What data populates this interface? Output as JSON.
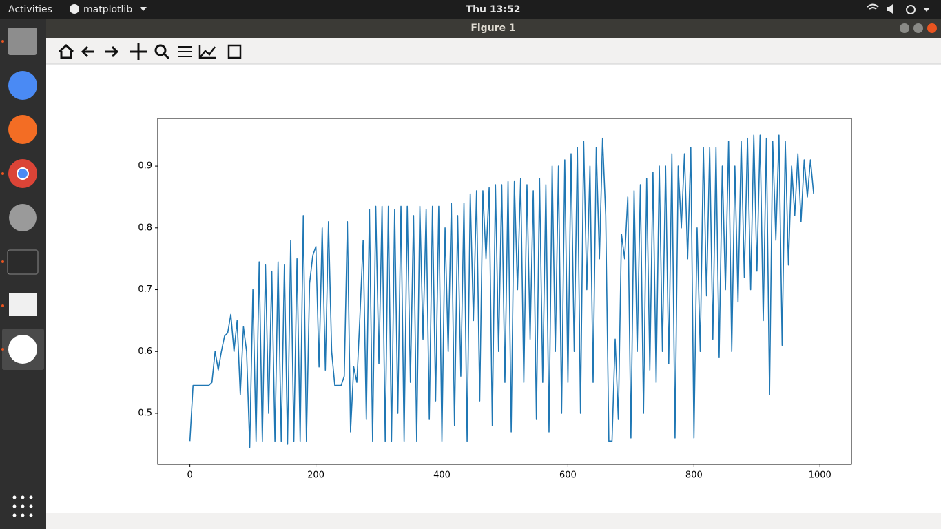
{
  "topbar": {
    "activities": "Activities",
    "app": "matplotlib",
    "clock": "Thu 13:52"
  },
  "window": {
    "title": "Figure 1"
  },
  "chart_data": {
    "type": "line",
    "color": "#1f77b4",
    "xlim": [
      -51,
      1050
    ],
    "ylim": [
      0.4175,
      0.977
    ],
    "xticks": [
      0,
      200,
      400,
      600,
      800,
      1000
    ],
    "yticks": [
      0.5,
      0.6,
      0.7,
      0.8,
      0.9
    ],
    "x": [
      0,
      5,
      10,
      15,
      20,
      25,
      30,
      35,
      40,
      45,
      50,
      55,
      60,
      65,
      70,
      75,
      80,
      85,
      90,
      95,
      100,
      105,
      110,
      115,
      120,
      125,
      130,
      135,
      140,
      145,
      150,
      155,
      160,
      165,
      170,
      175,
      180,
      185,
      190,
      195,
      200,
      205,
      210,
      215,
      220,
      225,
      230,
      235,
      240,
      245,
      250,
      255,
      260,
      265,
      270,
      275,
      280,
      285,
      290,
      295,
      300,
      305,
      310,
      315,
      320,
      325,
      330,
      335,
      340,
      345,
      350,
      355,
      360,
      365,
      370,
      375,
      380,
      385,
      390,
      395,
      400,
      405,
      410,
      415,
      420,
      425,
      430,
      435,
      440,
      445,
      450,
      455,
      460,
      465,
      470,
      475,
      480,
      485,
      490,
      495,
      500,
      505,
      510,
      515,
      520,
      525,
      530,
      535,
      540,
      545,
      550,
      555,
      560,
      565,
      570,
      575,
      580,
      585,
      590,
      595,
      600,
      605,
      610,
      615,
      620,
      625,
      630,
      635,
      640,
      645,
      650,
      655,
      660,
      665,
      670,
      675,
      680,
      685,
      690,
      695,
      700,
      705,
      710,
      715,
      720,
      725,
      730,
      735,
      740,
      745,
      750,
      755,
      760,
      765,
      770,
      775,
      780,
      785,
      790,
      795,
      800,
      805,
      810,
      815,
      820,
      825,
      830,
      835,
      840,
      845,
      850,
      855,
      860,
      865,
      870,
      875,
      880,
      885,
      890,
      895,
      900,
      905,
      910,
      915,
      920,
      925,
      930,
      935,
      940,
      945,
      950,
      955,
      960,
      965,
      970,
      975,
      980,
      985,
      990
    ],
    "values": [
      0.455,
      0.545,
      0.545,
      0.545,
      0.545,
      0.545,
      0.545,
      0.55,
      0.6,
      0.57,
      0.6,
      0.625,
      0.63,
      0.66,
      0.6,
      0.65,
      0.53,
      0.64,
      0.6,
      0.445,
      0.7,
      0.455,
      0.745,
      0.455,
      0.74,
      0.5,
      0.73,
      0.455,
      0.745,
      0.455,
      0.74,
      0.45,
      0.78,
      0.455,
      0.75,
      0.455,
      0.82,
      0.455,
      0.71,
      0.755,
      0.77,
      0.575,
      0.8,
      0.57,
      0.81,
      0.6,
      0.545,
      0.545,
      0.545,
      0.56,
      0.81,
      0.47,
      0.575,
      0.55,
      0.66,
      0.78,
      0.49,
      0.83,
      0.455,
      0.835,
      0.58,
      0.835,
      0.455,
      0.835,
      0.455,
      0.83,
      0.5,
      0.835,
      0.455,
      0.835,
      0.55,
      0.82,
      0.455,
      0.835,
      0.62,
      0.83,
      0.49,
      0.835,
      0.52,
      0.835,
      0.455,
      0.8,
      0.6,
      0.84,
      0.48,
      0.82,
      0.56,
      0.84,
      0.455,
      0.855,
      0.65,
      0.86,
      0.52,
      0.86,
      0.75,
      0.865,
      0.48,
      0.87,
      0.6,
      0.87,
      0.55,
      0.875,
      0.47,
      0.875,
      0.7,
      0.88,
      0.55,
      0.87,
      0.62,
      0.86,
      0.49,
      0.88,
      0.55,
      0.87,
      0.47,
      0.9,
      0.6,
      0.9,
      0.5,
      0.91,
      0.55,
      0.92,
      0.6,
      0.93,
      0.5,
      0.94,
      0.7,
      0.9,
      0.55,
      0.93,
      0.75,
      0.945,
      0.82,
      0.455,
      0.455,
      0.62,
      0.49,
      0.79,
      0.75,
      0.85,
      0.46,
      0.86,
      0.6,
      0.87,
      0.5,
      0.88,
      0.57,
      0.89,
      0.55,
      0.9,
      0.6,
      0.9,
      0.58,
      0.92,
      0.46,
      0.9,
      0.8,
      0.92,
      0.75,
      0.93,
      0.46,
      0.8,
      0.6,
      0.93,
      0.69,
      0.93,
      0.62,
      0.93,
      0.59,
      0.9,
      0.7,
      0.94,
      0.6,
      0.9,
      0.68,
      0.94,
      0.72,
      0.945,
      0.7,
      0.95,
      0.73,
      0.95,
      0.65,
      0.945,
      0.53,
      0.94,
      0.78,
      0.95,
      0.61,
      0.94,
      0.74,
      0.9,
      0.82,
      0.92,
      0.81,
      0.91,
      0.85,
      0.91,
      0.855
    ]
  }
}
